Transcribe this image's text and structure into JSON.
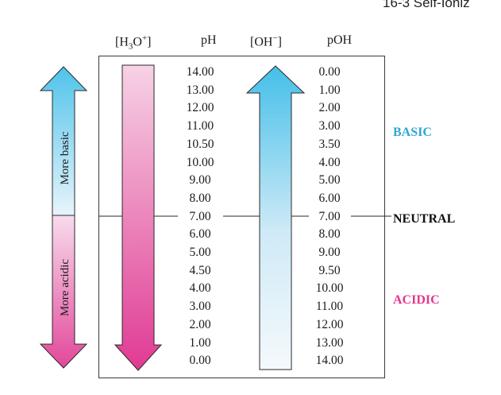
{
  "page_header": "16-3    Self-Ioniz",
  "columns": {
    "h3o_parts": [
      "[H",
      "3",
      "O",
      "+",
      "]"
    ],
    "ph": "pH",
    "oh_parts": [
      "[OH",
      "−",
      "]"
    ],
    "poh": "pOH"
  },
  "left_arrow": {
    "top_label": "More basic",
    "bottom_label": "More acidic"
  },
  "ph_values": [
    "14.00",
    "13.00",
    "12.00",
    "11.00",
    "10.50",
    "10.00",
    "9.00",
    "8.00",
    "7.00",
    "6.00",
    "5.00",
    "4.50",
    "4.00",
    "3.00",
    "2.00",
    "1.00",
    "0.00"
  ],
  "poh_values": [
    "0.00",
    "1.00",
    "2.00",
    "3.00",
    "3.50",
    "4.00",
    "5.00",
    "6.00",
    "7.00",
    "8.00",
    "9.00",
    "9.50",
    "10.00",
    "11.00",
    "12.00",
    "13.00",
    "14.00"
  ],
  "zones": {
    "basic": "BASIC",
    "neutral": "NEUTRAL",
    "acidic": "ACIDIC"
  },
  "colors": {
    "basic": "#2fa6d6",
    "neutral": "#111111",
    "acidic": "#e6368f"
  }
}
